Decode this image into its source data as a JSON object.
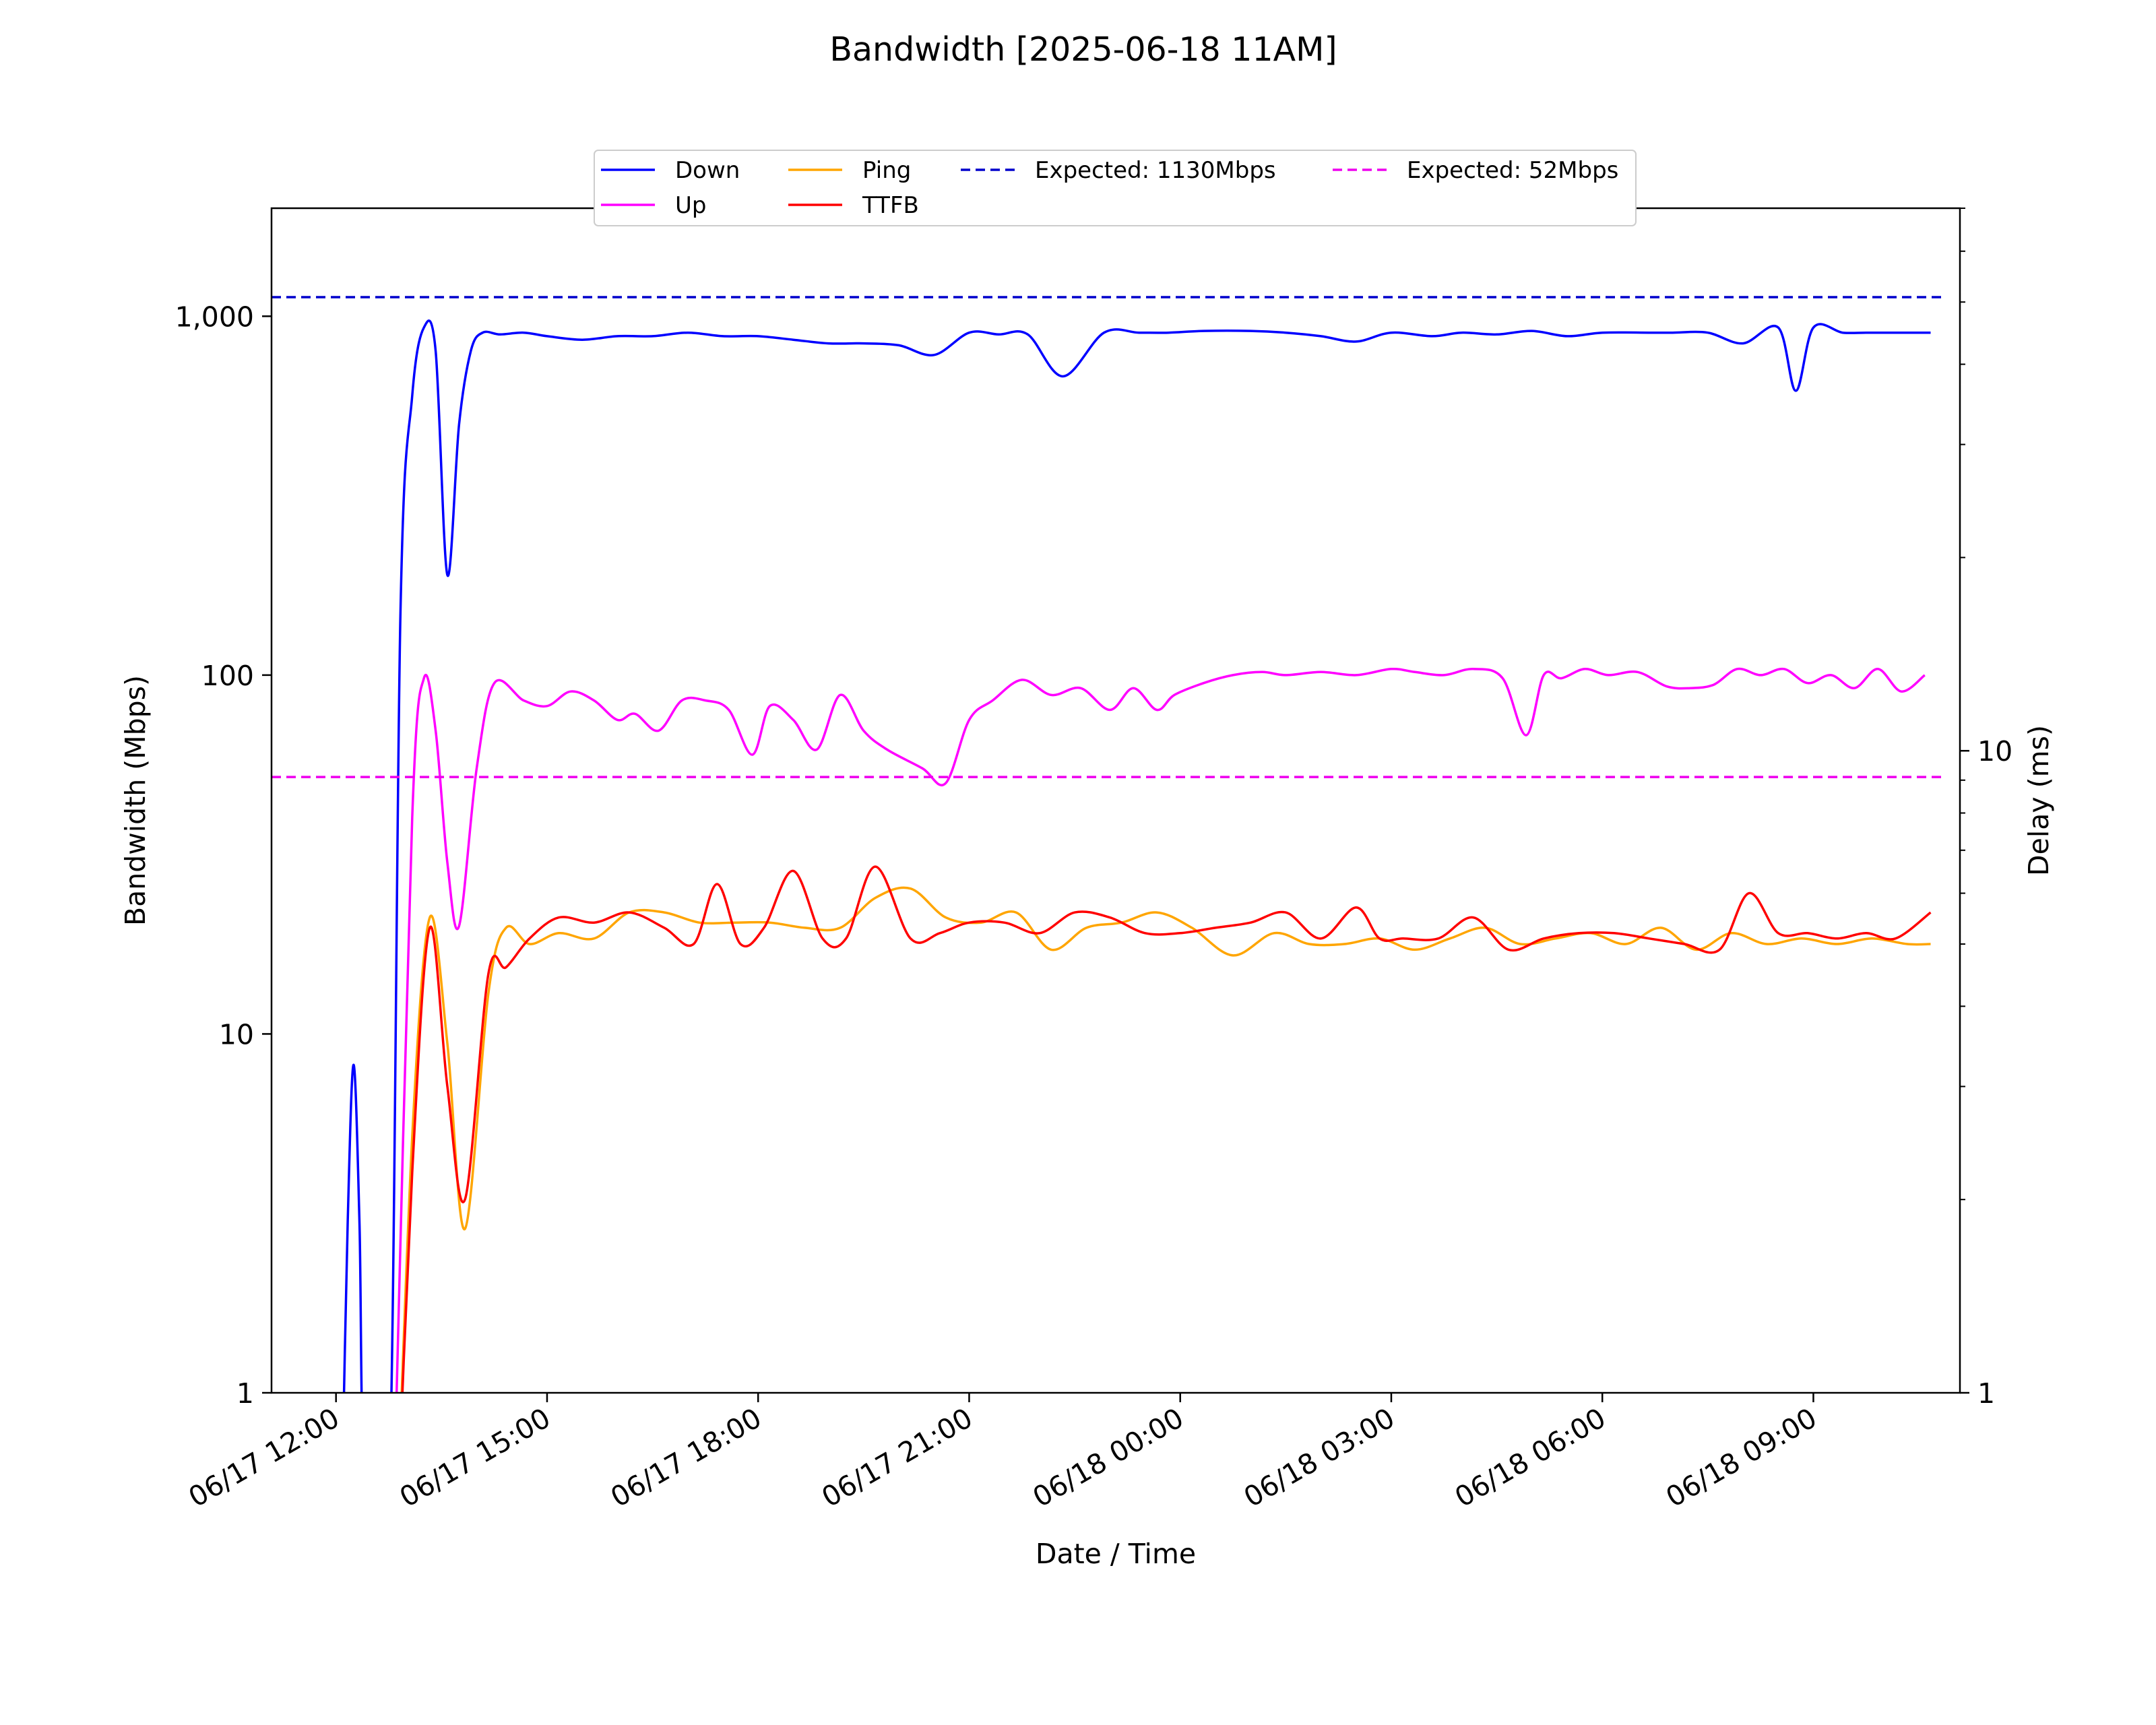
{
  "chart_data": {
    "type": "line",
    "title": "Bandwidth [2025-06-18 11AM]",
    "xlabel": "Date / Time",
    "ylabel": "Bandwidth (Mbps)",
    "y2label": "Delay (ms)",
    "yscale": "log",
    "ylim": [
      1,
      2000
    ],
    "y2scale": "log",
    "y2lim": [
      1,
      70
    ],
    "xlim": [
      "2025-06-17 11:05",
      "2025-06-18 11:05"
    ],
    "grid": false,
    "legend_position": "top-center",
    "x_ticks": [
      {
        "t": "2025-06-17 12:00",
        "label": "06/17 12:00"
      },
      {
        "t": "2025-06-17 15:00",
        "label": "06/17 15:00"
      },
      {
        "t": "2025-06-17 18:00",
        "label": "06/17 18:00"
      },
      {
        "t": "2025-06-17 21:00",
        "label": "06/17 21:00"
      },
      {
        "t": "2025-06-18 00:00",
        "label": "06/18 00:00"
      },
      {
        "t": "2025-06-18 03:00",
        "label": "06/18 03:00"
      },
      {
        "t": "2025-06-18 06:00",
        "label": "06/18 06:00"
      },
      {
        "t": "2025-06-18 09:00",
        "label": "06/18 09:00"
      }
    ],
    "y_ticks": [
      {
        "v": 1,
        "label": "1"
      },
      {
        "v": 10,
        "label": "10"
      },
      {
        "v": 100,
        "label": "100"
      },
      {
        "v": 1000,
        "label": "1,000"
      }
    ],
    "y2_ticks": [
      {
        "v": 1,
        "label": "1"
      },
      {
        "v": 10,
        "label": "10"
      }
    ],
    "series": [
      {
        "name": "Down",
        "color": "#0000ff",
        "axis": "left",
        "style": "solid",
        "x": [
          "2025-06-17 12:05",
          "2025-06-17 12:10",
          "2025-06-17 12:15",
          "2025-06-17 12:20",
          "2025-06-17 12:25",
          "2025-06-17 12:45",
          "2025-06-17 12:55",
          "2025-06-17 13:05",
          "2025-06-17 13:15",
          "2025-06-17 13:25",
          "2025-06-17 13:35",
          "2025-06-17 13:45",
          "2025-06-17 13:55",
          "2025-06-17 14:05",
          "2025-06-17 14:20",
          "2025-06-17 14:40",
          "2025-06-17 15:00",
          "2025-06-17 15:30",
          "2025-06-17 16:00",
          "2025-06-17 16:30",
          "2025-06-17 17:00",
          "2025-06-17 17:30",
          "2025-06-17 18:00",
          "2025-06-17 18:30",
          "2025-06-17 19:00",
          "2025-06-17 19:30",
          "2025-06-17 20:00",
          "2025-06-17 20:30",
          "2025-06-17 21:00",
          "2025-06-17 21:25",
          "2025-06-17 21:50",
          "2025-06-17 22:20",
          "2025-06-17 22:55",
          "2025-06-17 23:25",
          "2025-06-17 23:50",
          "2025-06-18 00:20",
          "2025-06-18 01:00",
          "2025-06-18 01:30",
          "2025-06-18 02:00",
          "2025-06-18 02:30",
          "2025-06-18 03:00",
          "2025-06-18 03:35",
          "2025-06-18 04:00",
          "2025-06-18 04:30",
          "2025-06-18 05:00",
          "2025-06-18 05:30",
          "2025-06-18 06:00",
          "2025-06-18 06:40",
          "2025-06-18 07:00",
          "2025-06-18 07:30",
          "2025-06-18 08:00",
          "2025-06-18 08:30",
          "2025-06-18 08:45",
          "2025-06-18 09:00",
          "2025-06-18 09:25",
          "2025-06-18 09:45",
          "2025-06-18 10:10",
          "2025-06-18 10:40"
        ],
        "values": [
          0.5,
          3,
          8.2,
          3,
          0.5,
          0.5,
          150,
          600,
          930,
          800,
          190,
          500,
          800,
          900,
          890,
          900,
          880,
          860,
          880,
          880,
          900,
          880,
          880,
          860,
          840,
          840,
          830,
          780,
          900,
          890,
          890,
          680,
          900,
          900,
          900,
          910,
          910,
          900,
          880,
          850,
          900,
          880,
          900,
          890,
          910,
          880,
          900,
          900,
          900,
          900,
          840,
          930,
          620,
          930,
          900,
          900,
          900,
          900
        ]
      },
      {
        "name": "Up",
        "color": "#ff00ff",
        "axis": "left",
        "style": "solid",
        "x": [
          "2025-06-17 12:50",
          "2025-06-17 13:05",
          "2025-06-17 13:15",
          "2025-06-17 13:25",
          "2025-06-17 13:35",
          "2025-06-17 13:45",
          "2025-06-17 14:00",
          "2025-06-17 14:15",
          "2025-06-17 14:40",
          "2025-06-17 15:00",
          "2025-06-17 15:20",
          "2025-06-17 15:40",
          "2025-06-17 16:00",
          "2025-06-17 16:15",
          "2025-06-17 16:35",
          "2025-06-17 16:55",
          "2025-06-17 17:15",
          "2025-06-17 17:35",
          "2025-06-17 17:55",
          "2025-06-17 18:10",
          "2025-06-17 18:30",
          "2025-06-17 18:50",
          "2025-06-17 19:10",
          "2025-06-17 19:30",
          "2025-06-17 19:50",
          "2025-06-17 20:20",
          "2025-06-17 20:40",
          "2025-06-17 21:00",
          "2025-06-17 21:20",
          "2025-06-17 21:45",
          "2025-06-17 22:10",
          "2025-06-17 22:35",
          "2025-06-17 23:00",
          "2025-06-17 23:20",
          "2025-06-17 23:40",
          "2025-06-17 23:55",
          "2025-06-18 00:20",
          "2025-06-18 00:45",
          "2025-06-18 01:10",
          "2025-06-18 01:30",
          "2025-06-18 02:00",
          "2025-06-18 02:30",
          "2025-06-18 03:00",
          "2025-06-18 03:20",
          "2025-06-18 03:45",
          "2025-06-18 04:10",
          "2025-06-18 04:35",
          "2025-06-18 04:55",
          "2025-06-18 05:10",
          "2025-06-18 05:25",
          "2025-06-18 05:45",
          "2025-06-18 06:05",
          "2025-06-18 06:30",
          "2025-06-18 06:55",
          "2025-06-18 07:15",
          "2025-06-18 07:35",
          "2025-06-18 07:55",
          "2025-06-18 08:15",
          "2025-06-18 08:35",
          "2025-06-18 08:55",
          "2025-06-18 09:15",
          "2025-06-18 09:35",
          "2025-06-18 09:55",
          "2025-06-18 10:15",
          "2025-06-18 10:35"
        ],
        "values": [
          0.6,
          40,
          98,
          70,
          30,
          20,
          55,
          95,
          85,
          82,
          90,
          85,
          75,
          78,
          70,
          85,
          85,
          80,
          60,
          82,
          75,
          62,
          88,
          70,
          62,
          55,
          50,
          75,
          85,
          97,
          88,
          92,
          80,
          92,
          80,
          88,
          95,
          100,
          102,
          100,
          102,
          100,
          104,
          102,
          100,
          104,
          98,
          68,
          100,
          98,
          104,
          100,
          102,
          93,
          92,
          94,
          104,
          100,
          104,
          95,
          100,
          92,
          104,
          90,
          100
        ]
      },
      {
        "name": "Ping",
        "color": "#ffa500",
        "axis": "right",
        "style": "solid",
        "x": [
          "2025-06-17 12:50",
          "2025-06-17 13:05",
          "2025-06-17 13:20",
          "2025-06-17 13:35",
          "2025-06-17 13:50",
          "2025-06-17 14:10",
          "2025-06-17 14:25",
          "2025-06-17 14:45",
          "2025-06-17 15:10",
          "2025-06-17 15:40",
          "2025-06-17 16:10",
          "2025-06-17 16:40",
          "2025-06-17 17:10",
          "2025-06-17 17:40",
          "2025-06-17 18:10",
          "2025-06-17 18:40",
          "2025-06-17 19:10",
          "2025-06-17 19:40",
          "2025-06-17 20:10",
          "2025-06-17 20:40",
          "2025-06-17 21:10",
          "2025-06-17 21:40",
          "2025-06-17 22:10",
          "2025-06-17 22:40",
          "2025-06-17 23:10",
          "2025-06-17 23:40",
          "2025-06-18 00:10",
          "2025-06-18 00:45",
          "2025-06-18 01:20",
          "2025-06-18 01:50",
          "2025-06-18 02:20",
          "2025-06-18 02:50",
          "2025-06-18 03:20",
          "2025-06-18 03:50",
          "2025-06-18 04:20",
          "2025-06-18 04:50",
          "2025-06-18 05:20",
          "2025-06-18 05:50",
          "2025-06-18 06:20",
          "2025-06-18 06:50",
          "2025-06-18 07:20",
          "2025-06-18 07:50",
          "2025-06-18 08:20",
          "2025-06-18 08:50",
          "2025-06-18 09:20",
          "2025-06-18 09:50",
          "2025-06-18 10:20",
          "2025-06-18 10:40"
        ],
        "values": [
          0.5,
          2.5,
          5.5,
          3.5,
          1.8,
          4.2,
          5.3,
          5.0,
          5.2,
          5.1,
          5.6,
          5.6,
          5.4,
          5.4,
          5.4,
          5.3,
          5.3,
          5.9,
          6.1,
          5.5,
          5.4,
          5.6,
          4.9,
          5.3,
          5.4,
          5.6,
          5.3,
          4.8,
          5.2,
          5.0,
          5.0,
          5.1,
          4.9,
          5.1,
          5.3,
          5.0,
          5.1,
          5.2,
          5.0,
          5.3,
          4.9,
          5.2,
          5.0,
          5.1,
          5.0,
          5.1,
          5.0,
          5.0
        ]
      },
      {
        "name": "TTFB",
        "color": "#ff0000",
        "axis": "right",
        "style": "solid",
        "x": [
          "2025-06-17 12:50",
          "2025-06-17 13:05",
          "2025-06-17 13:20",
          "2025-06-17 13:35",
          "2025-06-17 13:50",
          "2025-06-17 14:10",
          "2025-06-17 14:25",
          "2025-06-17 14:45",
          "2025-06-17 15:10",
          "2025-06-17 15:40",
          "2025-06-17 16:10",
          "2025-06-17 16:40",
          "2025-06-17 17:05",
          "2025-06-17 17:25",
          "2025-06-17 17:45",
          "2025-06-17 18:05",
          "2025-06-17 18:30",
          "2025-06-17 18:55",
          "2025-06-17 19:15",
          "2025-06-17 19:40",
          "2025-06-17 20:10",
          "2025-06-17 20:35",
          "2025-06-17 21:00",
          "2025-06-17 21:30",
          "2025-06-17 22:00",
          "2025-06-17 22:30",
          "2025-06-17 23:00",
          "2025-06-17 23:30",
          "2025-06-18 00:00",
          "2025-06-18 00:30",
          "2025-06-18 01:00",
          "2025-06-18 01:30",
          "2025-06-18 02:00",
          "2025-06-18 02:30",
          "2025-06-18 02:50",
          "2025-06-18 03:10",
          "2025-06-18 03:40",
          "2025-06-18 04:10",
          "2025-06-18 04:40",
          "2025-06-18 05:10",
          "2025-06-18 05:40",
          "2025-06-18 06:10",
          "2025-06-18 06:40",
          "2025-06-18 07:10",
          "2025-06-18 07:40",
          "2025-06-18 08:05",
          "2025-06-18 08:30",
          "2025-06-18 08:55",
          "2025-06-18 09:20",
          "2025-06-18 09:45",
          "2025-06-18 10:10",
          "2025-06-18 10:40"
        ],
        "values": [
          0.5,
          2.2,
          5.3,
          3.0,
          2.0,
          4.5,
          4.6,
          5.1,
          5.5,
          5.4,
          5.6,
          5.3,
          5.0,
          6.2,
          5.0,
          5.3,
          6.5,
          5.1,
          5.1,
          6.6,
          5.1,
          5.2,
          5.4,
          5.4,
          5.2,
          5.6,
          5.5,
          5.2,
          5.2,
          5.3,
          5.4,
          5.6,
          5.1,
          5.7,
          5.1,
          5.1,
          5.1,
          5.5,
          4.9,
          5.1,
          5.2,
          5.2,
          5.1,
          5.0,
          4.9,
          6.0,
          5.2,
          5.2,
          5.1,
          5.2,
          5.1,
          5.6
        ]
      },
      {
        "name": "Expected: 1130Mbps",
        "color": "#0000cc",
        "axis": "left",
        "style": "dashed",
        "constant": 1130
      },
      {
        "name": "Expected: 52Mbps",
        "color": "#ee00ee",
        "axis": "left",
        "style": "dashed",
        "constant": 52
      }
    ]
  }
}
